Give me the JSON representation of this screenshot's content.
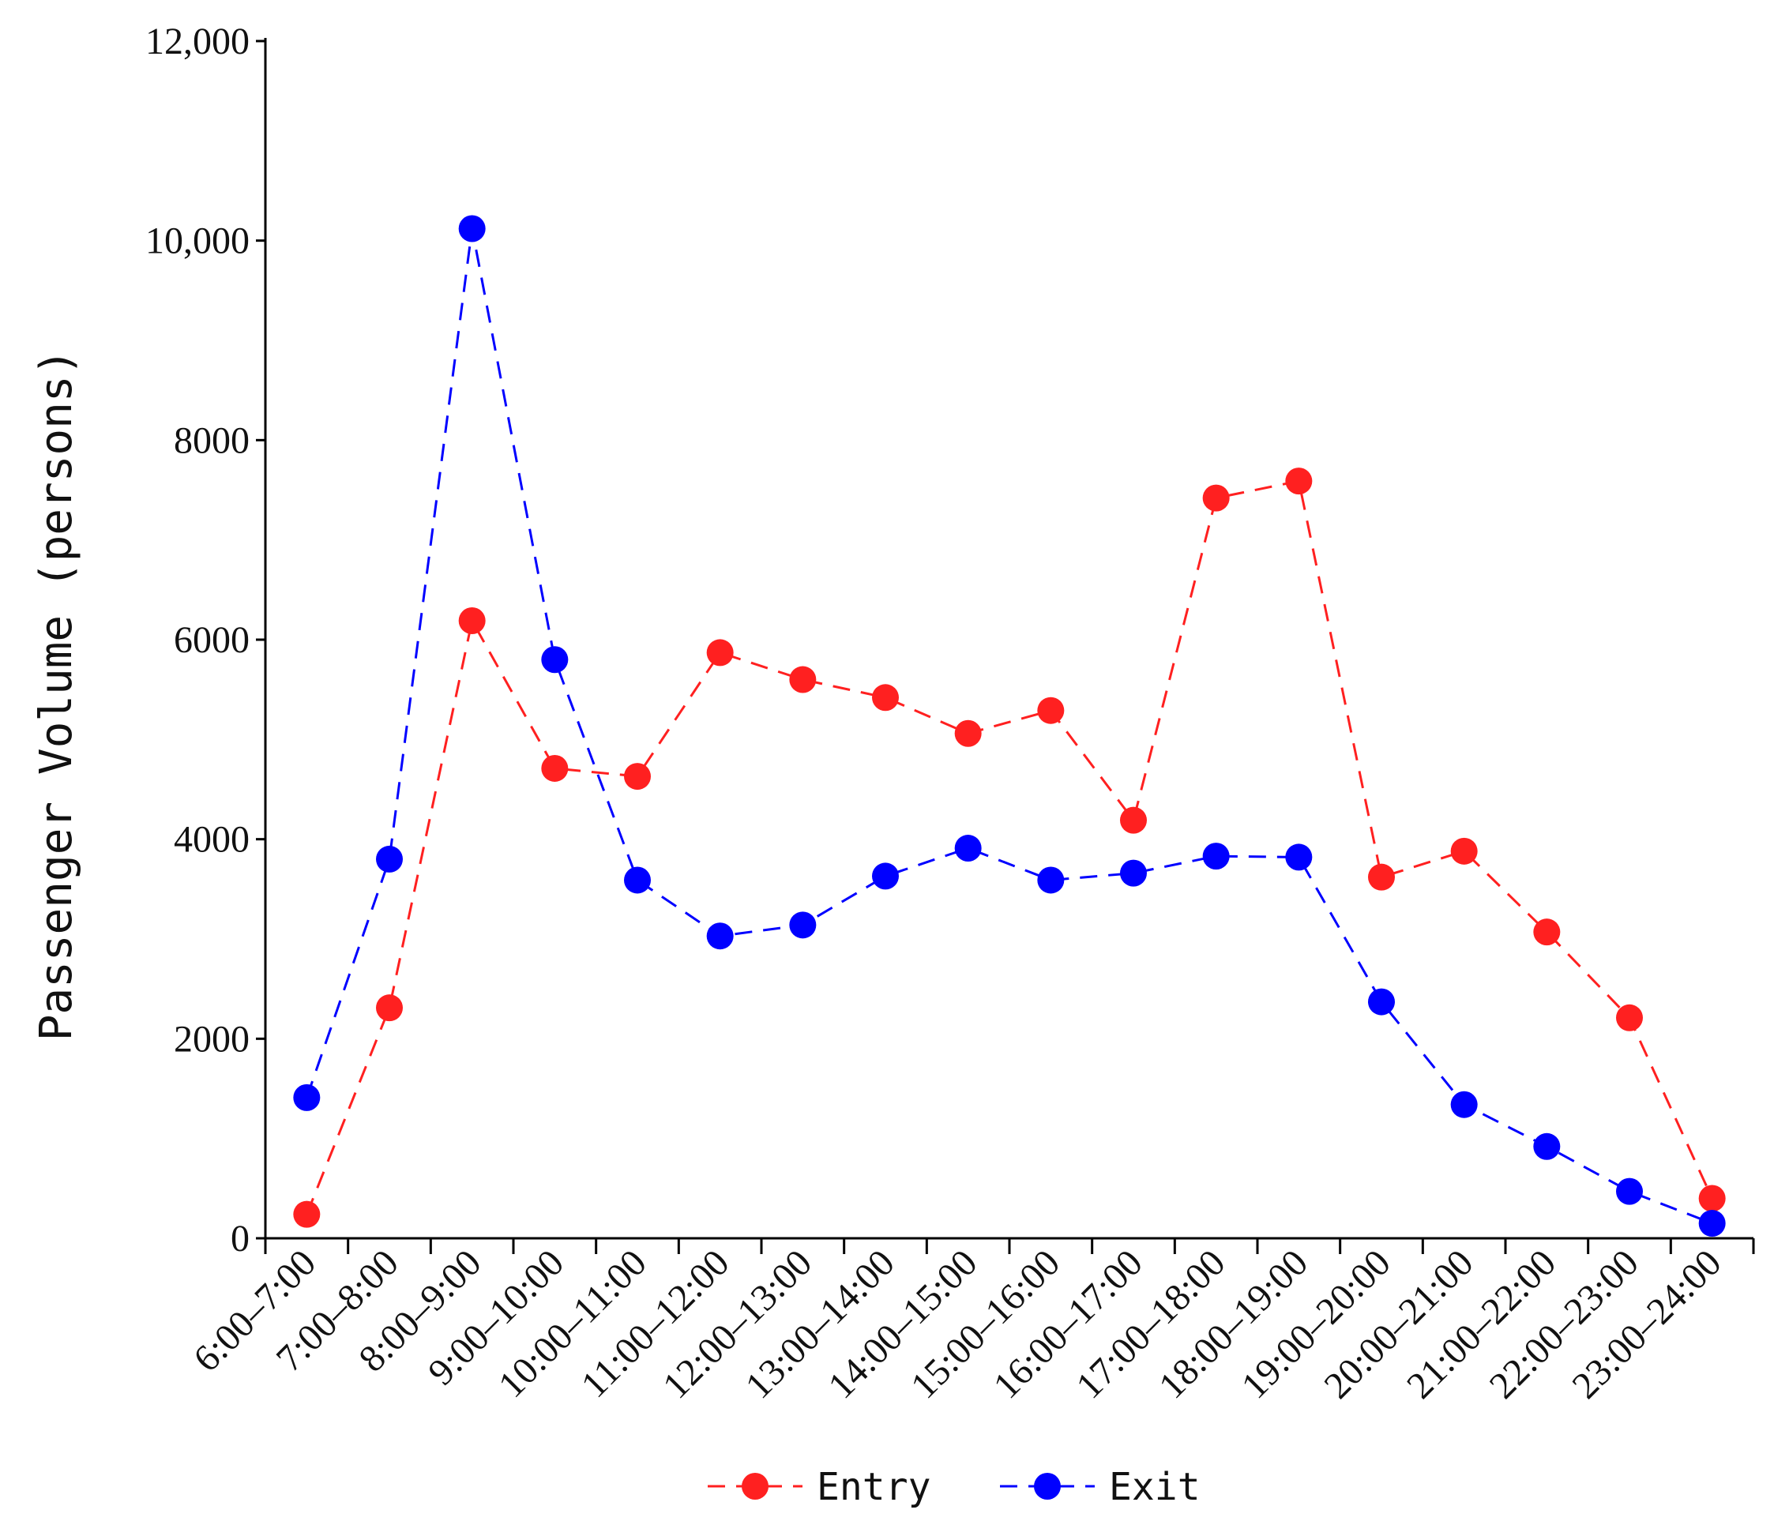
{
  "chart_data": {
    "type": "line",
    "title": "",
    "xlabel": "",
    "ylabel": "Passenger Volume (persons)",
    "ylim": [
      0,
      12000
    ],
    "yticks": [
      0,
      2000,
      4000,
      6000,
      8000,
      10000,
      12000
    ],
    "ytick_labels": [
      "0",
      "2000",
      "4000",
      "6000",
      "8000",
      "10,000",
      "12,000"
    ],
    "categories": [
      "6:00–7:00",
      "7:00–8:00",
      "8:00–9:00",
      "9:00–10:00",
      "10:00–11:00",
      "11:00–12:00",
      "12:00–13:00",
      "13:00–14:00",
      "14:00–15:00",
      "15:00–16:00",
      "16:00–17:00",
      "17:00–18:00",
      "18:00–19:00",
      "19:00–20:00",
      "20:00–21:00",
      "21:00–22:00",
      "22:00–23:00",
      "23:00–24:00"
    ],
    "series": [
      {
        "name": "Entry",
        "color": "#ff2020",
        "values": [
          240,
          2310,
          6190,
          4710,
          4630,
          5870,
          5600,
          5420,
          5060,
          5290,
          4190,
          7420,
          7590,
          3620,
          3880,
          3070,
          2210,
          400
        ]
      },
      {
        "name": "Exit",
        "color": "#0000ff",
        "values": [
          1410,
          3800,
          10120,
          5800,
          3590,
          3030,
          3140,
          3630,
          3910,
          3590,
          3660,
          3830,
          3820,
          2370,
          1340,
          920,
          470,
          150
        ]
      }
    ],
    "legend_position": "bottom-center",
    "line_style": "dashed",
    "marker": "circle",
    "grid": false
  }
}
